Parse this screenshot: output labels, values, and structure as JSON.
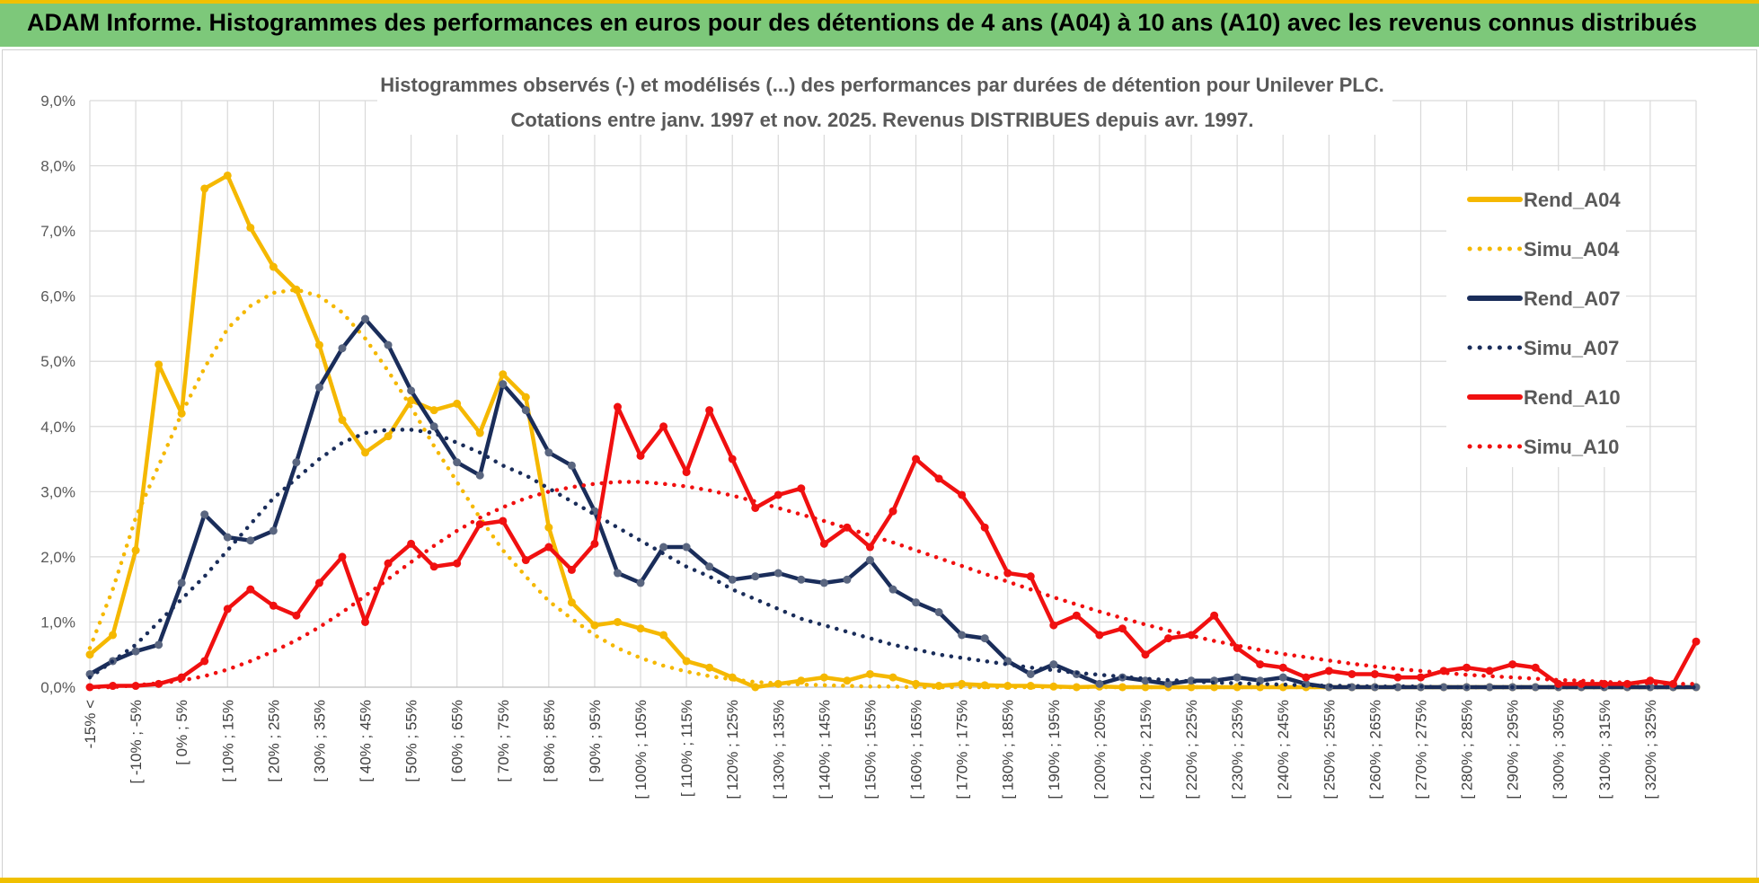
{
  "header": {
    "title": "ADAM Informe. Histogrammes des performances en euros pour des détentions de 4 ans (A04) à 10 ans (A10) avec les revenus connus distribués"
  },
  "colors": {
    "banner": "#7dc87a",
    "accent": "#f0c000",
    "A04": "#f5b800",
    "A07": "#1a2d5a",
    "A10": "#f01010"
  },
  "chart_data": {
    "type": "line",
    "title_lines": [
      "Histogrammes observés (-) et modélisés (...) des performances par durées de détention pour Unilever PLC.",
      "Cotations entre janv. 1997 et nov. 2025. Revenus DISTRIBUES depuis avr. 1997."
    ],
    "xlabel": "",
    "ylabel": "",
    "ylim": [
      0,
      9
    ],
    "y_ticks": [
      "0,0%",
      "1,0%",
      "2,0%",
      "3,0%",
      "4,0%",
      "5,0%",
      "6,0%",
      "7,0%",
      "8,0%",
      "9,0%"
    ],
    "grid": true,
    "legend_position": "right",
    "x_labels": [
      "-15% <",
      "[ -10% ; -5%",
      "[ 0% ; 5%",
      "[ 10% ; 15%",
      "[ 20% ; 25%",
      "[ 30% ; 35%",
      "[ 40% ; 45%",
      "[ 50% ; 55%",
      "[ 60% ; 65%",
      "[ 70% ; 75%",
      "[ 80% ; 85%",
      "[ 90% ; 95%",
      "[ 100% ; 105%",
      "[ 110% ; 115%",
      "[ 120% ; 125%",
      "[ 130% ; 135%",
      "[ 140% ; 145%",
      "[ 150% ; 155%",
      "[ 160% ; 165%",
      "[ 170% ; 175%",
      "[ 180% ; 185%",
      "[ 190% ; 195%",
      "[ 200% ; 205%",
      "[ 210% ; 215%",
      "[ 220% ; 225%",
      "[ 230% ; 235%",
      "[ 240% ; 245%",
      "[ 250% ; 255%",
      "[ 260% ; 265%",
      "[ 270% ; 275%",
      "[ 280% ; 285%",
      "[ 290% ; 295%",
      "[ 300% ; 305%",
      "[ 310% ; 315%",
      "[ 320% ; 325%"
    ],
    "series": [
      {
        "name": "Rend_A04",
        "style": "solid",
        "color": "#f5b800",
        "values": [
          0.5,
          0.8,
          2.1,
          4.95,
          4.2,
          7.65,
          7.85,
          7.05,
          6.45,
          6.1,
          5.25,
          4.1,
          3.6,
          3.85,
          4.4,
          4.25,
          4.35,
          3.9,
          4.8,
          4.45,
          2.45,
          1.3,
          0.95,
          1.0,
          0.9,
          0.8,
          0.4,
          0.3,
          0.15,
          0.0,
          0.05,
          0.1,
          0.15,
          0.1,
          0.2,
          0.15,
          0.05,
          0.02,
          0.05,
          0.03,
          0.02,
          0.02,
          0.01,
          0.0,
          0.01,
          0.0,
          0.0,
          0.0,
          0.0,
          0.0,
          0.0,
          0.0,
          0.0,
          0.0,
          0.0,
          0.0,
          0.0,
          0.0,
          0.0,
          0.0,
          0.0,
          0.0,
          0.0,
          0.0,
          0.0,
          0.0,
          0.0,
          0.0,
          0.0,
          0.0,
          0.0
        ]
      },
      {
        "name": "Simu_A04",
        "style": "dotted",
        "color": "#f5b800",
        "values": [
          0.6,
          1.5,
          2.6,
          3.4,
          4.2,
          4.9,
          5.5,
          5.85,
          6.05,
          6.1,
          6.0,
          5.75,
          5.35,
          4.85,
          4.3,
          3.7,
          3.15,
          2.6,
          2.1,
          1.7,
          1.32,
          1.05,
          0.8,
          0.6,
          0.45,
          0.33,
          0.24,
          0.17,
          0.12,
          0.08,
          0.06,
          0.04,
          0.03,
          0.02,
          0.01,
          0.01,
          0.0,
          0.0,
          0.0,
          0.0,
          0.0,
          0.0,
          0.0,
          0.0,
          0.0,
          0.0,
          0.0,
          0.0,
          0.0,
          0.0,
          0.0,
          0.0,
          0.0,
          0.0,
          0.0,
          0.0,
          0.0,
          0.0,
          0.0,
          0.0,
          0.0,
          0.0,
          0.0,
          0.0,
          0.0,
          0.0,
          0.0,
          0.0,
          0.0,
          0.0,
          0.0
        ]
      },
      {
        "name": "Rend_A07",
        "style": "solid",
        "color": "#1a2d5a",
        "values": [
          0.2,
          0.4,
          0.55,
          0.65,
          1.6,
          2.65,
          2.3,
          2.25,
          2.4,
          3.45,
          4.6,
          5.2,
          5.65,
          5.25,
          4.55,
          4.0,
          3.45,
          3.25,
          4.65,
          4.25,
          3.6,
          3.4,
          2.7,
          1.75,
          1.6,
          2.15,
          2.15,
          1.85,
          1.65,
          1.7,
          1.75,
          1.65,
          1.6,
          1.65,
          1.95,
          1.5,
          1.3,
          1.15,
          0.8,
          0.75,
          0.4,
          0.2,
          0.35,
          0.2,
          0.05,
          0.15,
          0.1,
          0.05,
          0.1,
          0.1,
          0.15,
          0.1,
          0.15,
          0.05,
          0.0,
          0.0,
          0.0,
          0.0,
          0.0,
          0.0,
          0.0,
          0.0,
          0.0,
          0.0,
          0.0,
          0.0,
          0.0,
          0.0,
          0.0,
          0.0,
          0.0
        ]
      },
      {
        "name": "Simu_A07",
        "style": "dotted",
        "color": "#1a2d5a",
        "values": [
          0.15,
          0.4,
          0.65,
          1.0,
          1.35,
          1.7,
          2.1,
          2.5,
          2.9,
          3.2,
          3.5,
          3.75,
          3.9,
          3.95,
          3.95,
          3.9,
          3.75,
          3.6,
          3.4,
          3.25,
          3.05,
          2.85,
          2.65,
          2.45,
          2.25,
          2.05,
          1.85,
          1.7,
          1.5,
          1.35,
          1.2,
          1.05,
          0.95,
          0.85,
          0.75,
          0.65,
          0.58,
          0.5,
          0.45,
          0.4,
          0.35,
          0.3,
          0.26,
          0.22,
          0.19,
          0.16,
          0.13,
          0.11,
          0.09,
          0.07,
          0.06,
          0.05,
          0.04,
          0.03,
          0.02,
          0.02,
          0.01,
          0.01,
          0.01,
          0.0,
          0.0,
          0.0,
          0.0,
          0.0,
          0.0,
          0.0,
          0.0,
          0.0,
          0.0,
          0.0,
          0.0
        ]
      },
      {
        "name": "Rend_A10",
        "style": "solid",
        "color": "#f01010",
        "values": [
          0.0,
          0.02,
          0.02,
          0.05,
          0.15,
          0.4,
          1.2,
          1.5,
          1.25,
          1.1,
          1.6,
          2.0,
          1.0,
          1.9,
          2.2,
          1.85,
          1.9,
          2.5,
          2.55,
          1.95,
          2.15,
          1.8,
          2.2,
          4.3,
          3.55,
          4.0,
          3.3,
          4.25,
          3.5,
          2.75,
          2.95,
          3.05,
          2.2,
          2.45,
          2.15,
          2.7,
          3.5,
          3.2,
          2.95,
          2.45,
          1.75,
          1.7,
          0.95,
          1.1,
          0.8,
          0.9,
          0.5,
          0.75,
          0.8,
          1.1,
          0.6,
          0.35,
          0.3,
          0.15,
          0.25,
          0.2,
          0.2,
          0.15,
          0.15,
          0.25,
          0.3,
          0.25,
          0.35,
          0.3,
          0.05,
          0.05,
          0.05,
          0.05,
          0.1,
          0.05,
          0.7
        ]
      },
      {
        "name": "Simu_A10",
        "style": "dotted",
        "color": "#f01010",
        "values": [
          0.0,
          0.0,
          0.03,
          0.06,
          0.1,
          0.17,
          0.27,
          0.4,
          0.55,
          0.72,
          0.92,
          1.15,
          1.4,
          1.66,
          1.92,
          2.17,
          2.4,
          2.6,
          2.76,
          2.9,
          3.0,
          3.07,
          3.12,
          3.15,
          3.15,
          3.12,
          3.08,
          3.02,
          2.94,
          2.85,
          2.75,
          2.65,
          2.55,
          2.44,
          2.33,
          2.22,
          2.1,
          1.98,
          1.86,
          1.74,
          1.62,
          1.5,
          1.38,
          1.27,
          1.16,
          1.06,
          0.96,
          0.87,
          0.79,
          0.71,
          0.64,
          0.57,
          0.51,
          0.46,
          0.41,
          0.36,
          0.32,
          0.28,
          0.25,
          0.22,
          0.19,
          0.17,
          0.15,
          0.13,
          0.11,
          0.1,
          0.08,
          0.07,
          0.06,
          0.05,
          0.05
        ]
      }
    ]
  }
}
